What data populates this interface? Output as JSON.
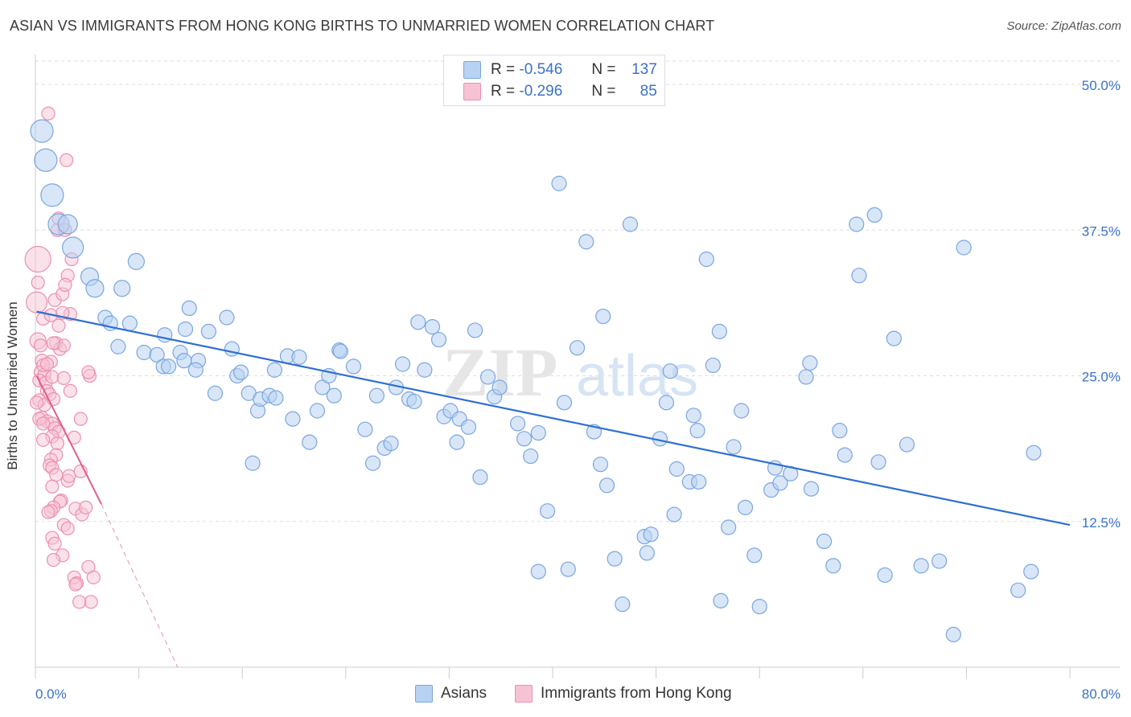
{
  "header": {
    "title": "ASIAN VS IMMIGRANTS FROM HONG KONG BIRTHS TO UNMARRIED WOMEN CORRELATION CHART",
    "source": "Source: ZipAtlas.com"
  },
  "watermark": {
    "zip": "ZIP",
    "atlas": "atlas"
  },
  "legend": {
    "rows": [
      {
        "r_label": "R =",
        "r_value": "-0.546",
        "n_label": "N =",
        "n_value": "137"
      },
      {
        "r_label": "R =",
        "r_value": "-0.296",
        "n_label": "N =",
        "n_value": "85"
      }
    ]
  },
  "colors": {
    "asians_fill": "#b8d2f3",
    "asians_stroke": "#7aa6e0",
    "asians_line": "#2f6fd0",
    "hk_fill": "#f7c3d4",
    "hk_stroke": "#ec8fb0",
    "hk_line": "#e0608a",
    "axis_text": "#3a72c8",
    "grid": "#dddddd"
  },
  "chart_data": {
    "type": "scatter",
    "title": "ASIAN VS IMMIGRANTS FROM HONG KONG BIRTHS TO UNMARRIED WOMEN CORRELATION CHART",
    "xlabel": "",
    "ylabel": "Births to Unmarried Women",
    "xlim": [
      0,
      80
    ],
    "ylim": [
      0,
      52
    ],
    "x_tick_labels": [
      "0.0%",
      "80.0%"
    ],
    "y_ticks": [
      12.5,
      25.0,
      37.5,
      50.0
    ],
    "y_tick_labels": [
      "12.5%",
      "25.0%",
      "37.5%",
      "50.0%"
    ],
    "grid": "horizontal dashed",
    "legend_position": "top-center and bottom",
    "series": [
      {
        "name": "Asians",
        "r": -0.546,
        "n": 137,
        "trend": {
          "x1": 0.1,
          "y1": 30.5,
          "x2": 80.0,
          "y2": 12.2
        },
        "points": [
          [
            0.5,
            46.0
          ],
          [
            0.8,
            43.5
          ],
          [
            1.3,
            40.5
          ],
          [
            1.8,
            38.0
          ],
          [
            2.5,
            38.0
          ],
          [
            2.9,
            36.0
          ],
          [
            4.2,
            33.5
          ],
          [
            4.6,
            32.5
          ],
          [
            6.7,
            32.5
          ],
          [
            7.8,
            34.8
          ],
          [
            5.4,
            30.0
          ],
          [
            5.8,
            29.5
          ],
          [
            7.3,
            29.5
          ],
          [
            6.4,
            27.5
          ],
          [
            8.4,
            27.0
          ],
          [
            9.4,
            26.8
          ],
          [
            10.0,
            28.5
          ],
          [
            11.2,
            27.0
          ],
          [
            9.9,
            25.8
          ],
          [
            10.3,
            25.8
          ],
          [
            11.5,
            26.3
          ],
          [
            11.6,
            29.0
          ],
          [
            11.9,
            30.8
          ],
          [
            12.6,
            26.3
          ],
          [
            12.4,
            25.5
          ],
          [
            13.4,
            28.8
          ],
          [
            13.9,
            23.5
          ],
          [
            14.8,
            30.0
          ],
          [
            15.2,
            27.3
          ],
          [
            15.6,
            25.0
          ],
          [
            15.9,
            25.3
          ],
          [
            16.5,
            23.5
          ],
          [
            17.2,
            22.0
          ],
          [
            17.4,
            23.0
          ],
          [
            16.8,
            17.5
          ],
          [
            18.1,
            23.3
          ],
          [
            18.6,
            23.1
          ],
          [
            18.5,
            25.5
          ],
          [
            19.5,
            26.7
          ],
          [
            19.9,
            21.3
          ],
          [
            20.4,
            26.6
          ],
          [
            21.2,
            19.3
          ],
          [
            21.8,
            22.0
          ],
          [
            22.2,
            24.0
          ],
          [
            22.7,
            25.0
          ],
          [
            23.1,
            23.3
          ],
          [
            23.5,
            27.2
          ],
          [
            23.6,
            27.1
          ],
          [
            24.6,
            25.8
          ],
          [
            25.5,
            20.4
          ],
          [
            26.1,
            17.5
          ],
          [
            26.4,
            23.3
          ],
          [
            27.0,
            18.8
          ],
          [
            27.5,
            19.2
          ],
          [
            27.9,
            24.0
          ],
          [
            28.4,
            26.0
          ],
          [
            28.9,
            23.0
          ],
          [
            29.3,
            22.8
          ],
          [
            29.6,
            29.6
          ],
          [
            30.1,
            25.5
          ],
          [
            30.7,
            29.2
          ],
          [
            31.2,
            28.1
          ],
          [
            31.6,
            21.5
          ],
          [
            32.1,
            22.0
          ],
          [
            32.6,
            19.3
          ],
          [
            32.8,
            21.3
          ],
          [
            33.5,
            20.6
          ],
          [
            34.0,
            28.9
          ],
          [
            34.4,
            16.3
          ],
          [
            35.0,
            24.9
          ],
          [
            35.5,
            23.2
          ],
          [
            35.9,
            24.0
          ],
          [
            37.3,
            20.9
          ],
          [
            37.8,
            19.6
          ],
          [
            38.3,
            18.1
          ],
          [
            38.9,
            20.1
          ],
          [
            38.9,
            8.2
          ],
          [
            39.6,
            13.4
          ],
          [
            40.5,
            41.5
          ],
          [
            40.9,
            22.7
          ],
          [
            41.2,
            8.4
          ],
          [
            41.9,
            27.4
          ],
          [
            42.6,
            36.5
          ],
          [
            43.2,
            20.2
          ],
          [
            43.7,
            17.4
          ],
          [
            43.9,
            30.1
          ],
          [
            44.2,
            15.6
          ],
          [
            44.8,
            9.3
          ],
          [
            45.4,
            5.4
          ],
          [
            46.0,
            38.0
          ],
          [
            47.1,
            11.2
          ],
          [
            47.3,
            9.8
          ],
          [
            47.6,
            11.4
          ],
          [
            48.3,
            19.6
          ],
          [
            48.8,
            22.7
          ],
          [
            49.1,
            25.4
          ],
          [
            49.4,
            13.1
          ],
          [
            49.6,
            17.0
          ],
          [
            50.6,
            15.9
          ],
          [
            50.9,
            21.6
          ],
          [
            51.2,
            20.3
          ],
          [
            51.3,
            15.9
          ],
          [
            51.9,
            35.0
          ],
          [
            52.4,
            25.9
          ],
          [
            52.9,
            28.8
          ],
          [
            53.0,
            5.7
          ],
          [
            53.6,
            12.0
          ],
          [
            54.0,
            18.9
          ],
          [
            54.6,
            22.0
          ],
          [
            54.9,
            13.7
          ],
          [
            55.6,
            9.6
          ],
          [
            56.0,
            5.2
          ],
          [
            56.9,
            15.2
          ],
          [
            57.2,
            17.1
          ],
          [
            57.6,
            15.8
          ],
          [
            58.4,
            16.6
          ],
          [
            59.6,
            24.9
          ],
          [
            60.0,
            15.3
          ],
          [
            59.9,
            26.1
          ],
          [
            61.0,
            10.8
          ],
          [
            61.7,
            8.7
          ],
          [
            62.2,
            20.3
          ],
          [
            62.6,
            18.2
          ],
          [
            63.5,
            38.0
          ],
          [
            63.7,
            33.6
          ],
          [
            64.9,
            38.8
          ],
          [
            65.2,
            17.6
          ],
          [
            65.7,
            7.9
          ],
          [
            66.4,
            28.2
          ],
          [
            67.4,
            19.1
          ],
          [
            68.5,
            8.7
          ],
          [
            69.9,
            9.1
          ],
          [
            71.0,
            2.8
          ],
          [
            71.8,
            36.0
          ],
          [
            76.0,
            6.6
          ],
          [
            77.0,
            8.2
          ],
          [
            77.2,
            18.4
          ]
        ]
      },
      {
        "name": "Immigrants from Hong Kong",
        "r": -0.296,
        "n": 85,
        "trend": {
          "x1": 0.1,
          "y1": 25.0,
          "x2": 5.1,
          "y2": 14.0,
          "dash_x2": 11.0,
          "dash_y2": 0.0
        },
        "points": [
          [
            1.0,
            47.5
          ],
          [
            0.2,
            35.0
          ],
          [
            1.8,
            38.5
          ],
          [
            0.1,
            31.3
          ],
          [
            0.6,
            29.9
          ],
          [
            0.2,
            28.0
          ],
          [
            1.7,
            37.5
          ],
          [
            2.3,
            37.5
          ],
          [
            2.5,
            33.6
          ],
          [
            1.5,
            31.5
          ],
          [
            2.1,
            32.0
          ],
          [
            1.2,
            30.2
          ],
          [
            1.8,
            29.3
          ],
          [
            2.7,
            30.3
          ],
          [
            1.6,
            27.8
          ],
          [
            1.9,
            27.3
          ],
          [
            2.2,
            27.6
          ],
          [
            0.5,
            26.3
          ],
          [
            1.2,
            26.2
          ],
          [
            0.4,
            25.3
          ],
          [
            0.7,
            25.1
          ],
          [
            0.3,
            24.6
          ],
          [
            0.8,
            24.4
          ],
          [
            1.3,
            24.9
          ],
          [
            0.9,
            23.7
          ],
          [
            1.1,
            23.4
          ],
          [
            2.7,
            23.7
          ],
          [
            0.3,
            22.9
          ],
          [
            0.7,
            22.5
          ],
          [
            0.5,
            21.4
          ],
          [
            0.9,
            21.1
          ],
          [
            1.3,
            20.9
          ],
          [
            1.5,
            20.5
          ],
          [
            1.8,
            20.2
          ],
          [
            1.3,
            19.8
          ],
          [
            1.7,
            19.2
          ],
          [
            1.6,
            18.2
          ],
          [
            1.2,
            17.8
          ],
          [
            1.1,
            17.3
          ],
          [
            1.3,
            17.1
          ],
          [
            1.6,
            16.5
          ],
          [
            2.5,
            16.0
          ],
          [
            2.6,
            16.4
          ],
          [
            3.0,
            19.7
          ],
          [
            3.5,
            21.3
          ],
          [
            3.5,
            16.8
          ],
          [
            1.3,
            15.5
          ],
          [
            2.0,
            14.3
          ],
          [
            1.9,
            14.2
          ],
          [
            1.4,
            13.7
          ],
          [
            1.2,
            13.4
          ],
          [
            1.0,
            13.3
          ],
          [
            3.1,
            13.6
          ],
          [
            3.6,
            13.1
          ],
          [
            2.2,
            12.2
          ],
          [
            2.5,
            11.9
          ],
          [
            1.3,
            11.1
          ],
          [
            1.5,
            10.6
          ],
          [
            2.1,
            9.6
          ],
          [
            1.4,
            9.2
          ],
          [
            4.1,
            8.6
          ],
          [
            3.0,
            7.7
          ],
          [
            3.2,
            7.2
          ],
          [
            3.1,
            7.1
          ],
          [
            4.5,
            7.7
          ],
          [
            4.3,
            5.6
          ],
          [
            3.4,
            5.6
          ],
          [
            4.2,
            25.0
          ],
          [
            4.1,
            25.3
          ],
          [
            3.9,
            13.7
          ],
          [
            0.1,
            22.7
          ],
          [
            0.3,
            21.3
          ],
          [
            0.6,
            20.9
          ],
          [
            2.2,
            24.8
          ],
          [
            0.4,
            27.6
          ],
          [
            0.6,
            25.9
          ],
          [
            1.4,
            27.8
          ],
          [
            2.8,
            35.0
          ],
          [
            2.3,
            32.8
          ],
          [
            2.1,
            30.4
          ],
          [
            2.4,
            43.5
          ],
          [
            0.2,
            33.0
          ],
          [
            1.4,
            23.0
          ],
          [
            0.9,
            26.0
          ],
          [
            0.6,
            19.5
          ]
        ]
      }
    ]
  },
  "bottom_legend": {
    "asians": "Asians",
    "hk": "Immigrants from Hong Kong"
  }
}
